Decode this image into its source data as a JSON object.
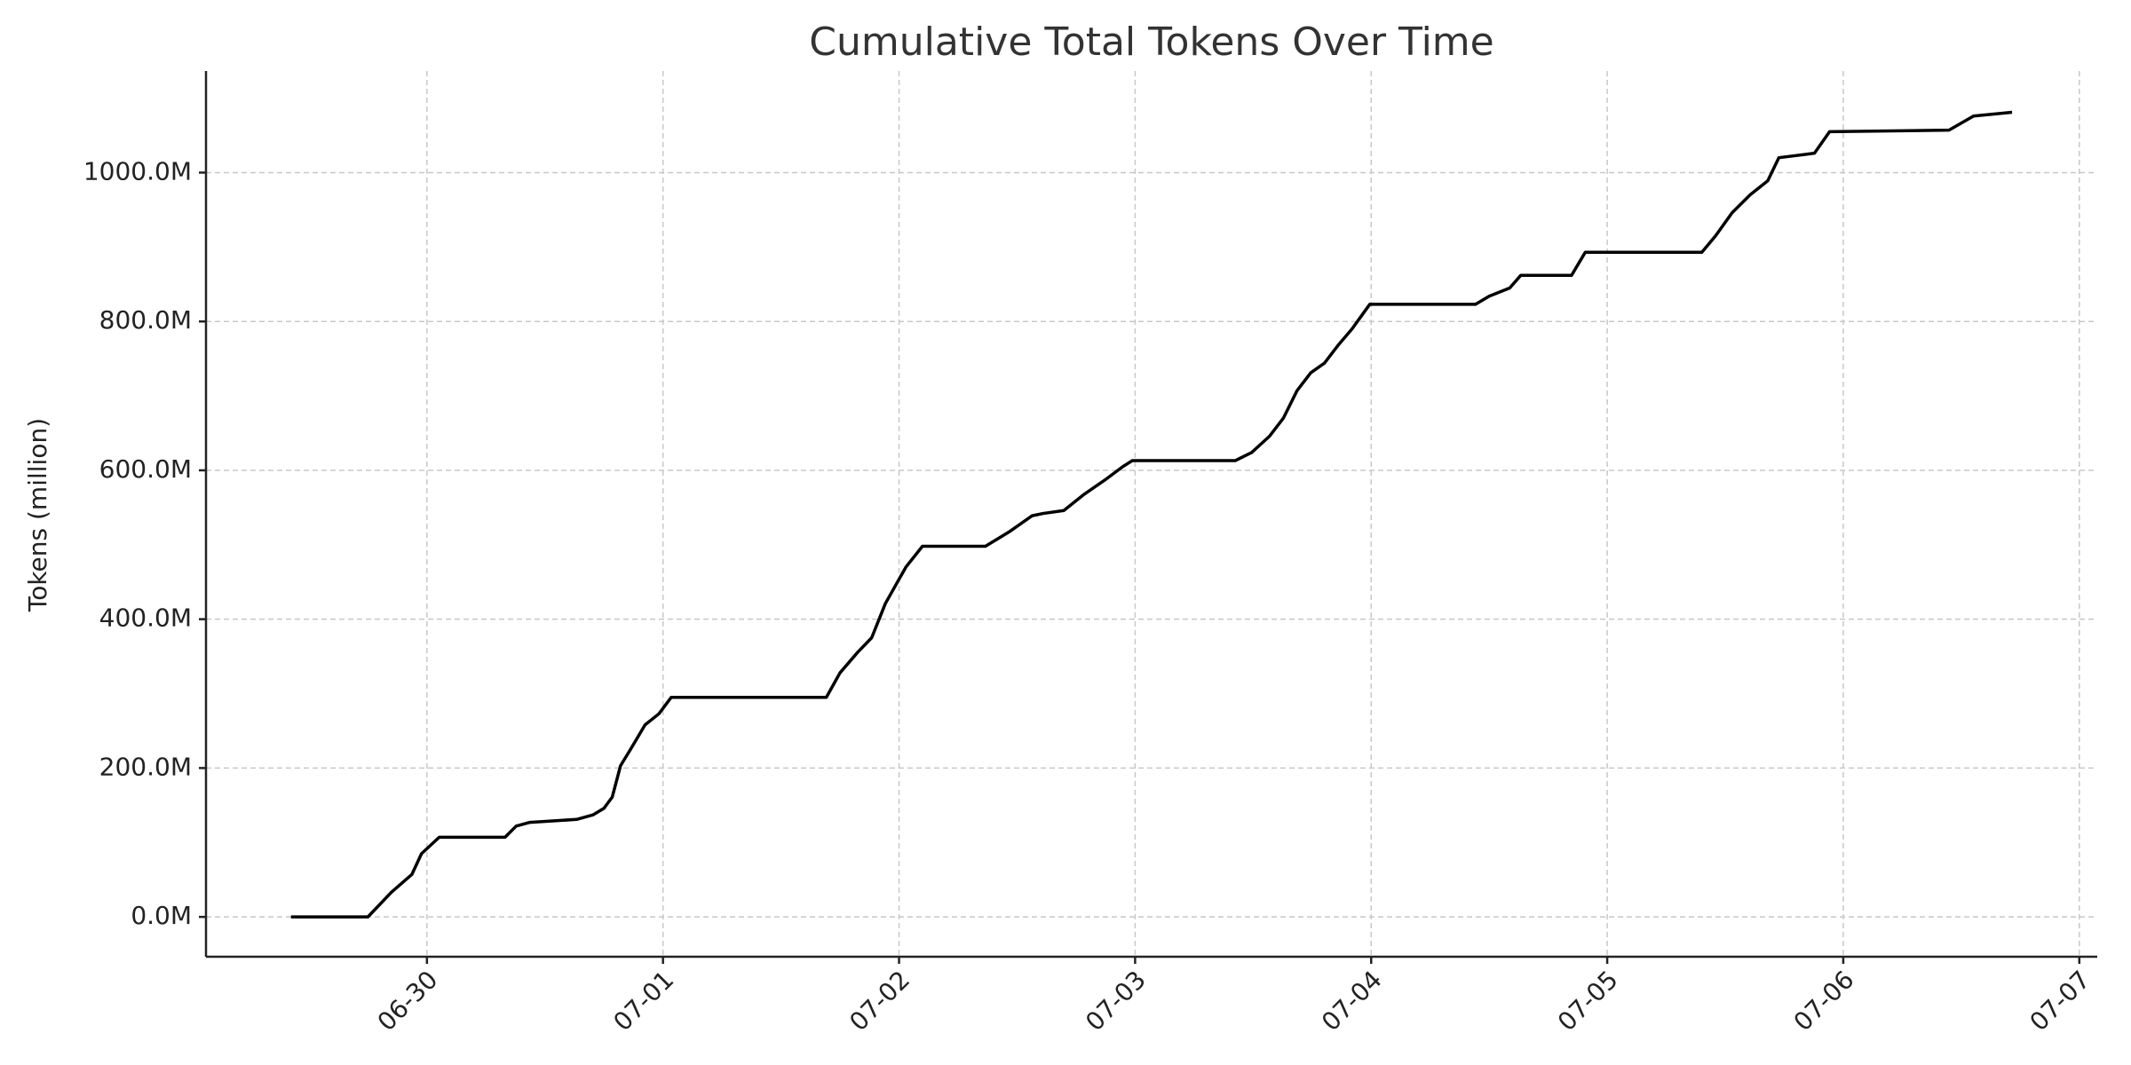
{
  "chart_data": {
    "type": "line",
    "title": "Cumulative Total Tokens Over Time",
    "y_label": "Tokens (million)",
    "x": [
      -0.576,
      -0.25,
      -0.151,
      -0.064,
      -0.023,
      0.052,
      0.331,
      0.378,
      0.436,
      0.634,
      0.703,
      0.75,
      0.785,
      0.82,
      0.866,
      0.924,
      0.983,
      1.035,
      1.692,
      1.75,
      1.826,
      1.884,
      1.942,
      2.029,
      2.099,
      2.366,
      2.465,
      2.564,
      2.61,
      2.698,
      2.785,
      2.872,
      2.948,
      2.988,
      3.424,
      3.494,
      3.57,
      3.628,
      3.686,
      3.744,
      3.802,
      3.86,
      3.919,
      3.994,
      4.442,
      4.5,
      4.587,
      4.634,
      4.849,
      4.907,
      5.401,
      5.459,
      5.529,
      5.605,
      5.68,
      5.727,
      5.878,
      5.942,
      6.448,
      6.552,
      6.715
    ],
    "values": [
      0,
      0,
      33,
      57,
      85,
      107,
      107,
      122,
      127,
      131,
      137,
      146,
      161,
      203,
      227,
      258,
      273,
      295,
      295,
      328,
      356,
      375,
      421,
      470,
      498,
      498,
      517,
      539,
      542,
      546,
      568,
      587,
      605,
      613,
      613,
      624,
      646,
      670,
      707,
      731,
      744,
      768,
      790,
      823,
      823,
      834,
      845,
      862,
      862,
      893,
      893,
      915,
      946,
      970,
      989,
      1020,
      1026,
      1055,
      1057,
      1076,
      1081
    ],
    "color": "#000000",
    "xlim": [
      -0.936,
      7.076
    ],
    "xticks": [
      {
        "value": 0,
        "label": "06-30"
      },
      {
        "value": 1,
        "label": "07-01"
      },
      {
        "value": 2,
        "label": "07-02"
      },
      {
        "value": 3,
        "label": "07-03"
      },
      {
        "value": 4,
        "label": "07-04"
      },
      {
        "value": 5,
        "label": "07-05"
      },
      {
        "value": 6,
        "label": "07-06"
      },
      {
        "value": 7,
        "label": "07-07"
      }
    ],
    "ylim": [
      -53.5,
      1136.5
    ],
    "yticks": [
      {
        "value": 0,
        "label": "0.0M"
      },
      {
        "value": 200,
        "label": "200.0M"
      },
      {
        "value": 400,
        "label": "400.0M"
      },
      {
        "value": 600,
        "label": "600.0M"
      },
      {
        "value": 800,
        "label": "800.0M"
      },
      {
        "value": 1000,
        "label": "1000.0M"
      }
    ],
    "grid": true
  }
}
